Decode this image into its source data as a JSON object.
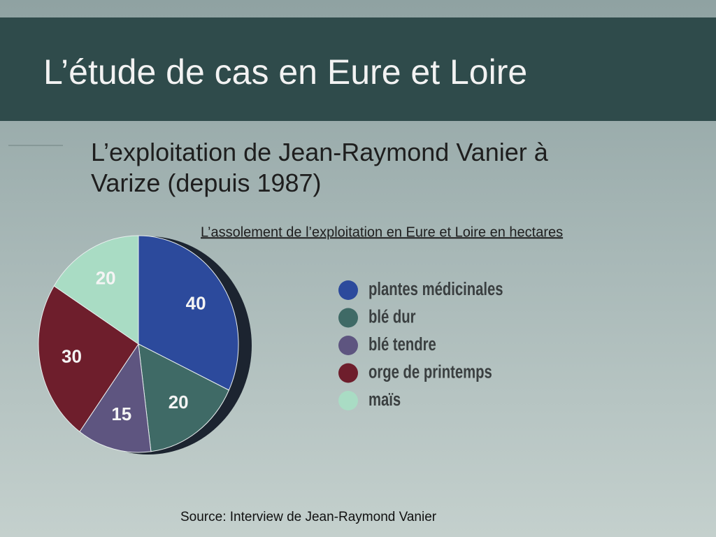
{
  "slide": {
    "title": "L’étude de cas en Eure et Loire",
    "bullet": [
      "L’exploitation de Jean-Raymond Vanier à",
      "Varize (depuis 1987)"
    ]
  },
  "chart_data": {
    "type": "pie",
    "title": "L’assolement de l’exploitation en Eure et Loire en hectares",
    "categories": [
      "plantes médicinales",
      "blé dur",
      "blé tendre",
      "orge de printemps",
      "maïs"
    ],
    "values": [
      40,
      20,
      15,
      30,
      20
    ],
    "colors": [
      "#2c4a9c",
      "#3f6a66",
      "#5e5580",
      "#6e1e2c",
      "#a9dcc4"
    ],
    "source": "Source: Interview de Jean-Raymond Vanier"
  }
}
